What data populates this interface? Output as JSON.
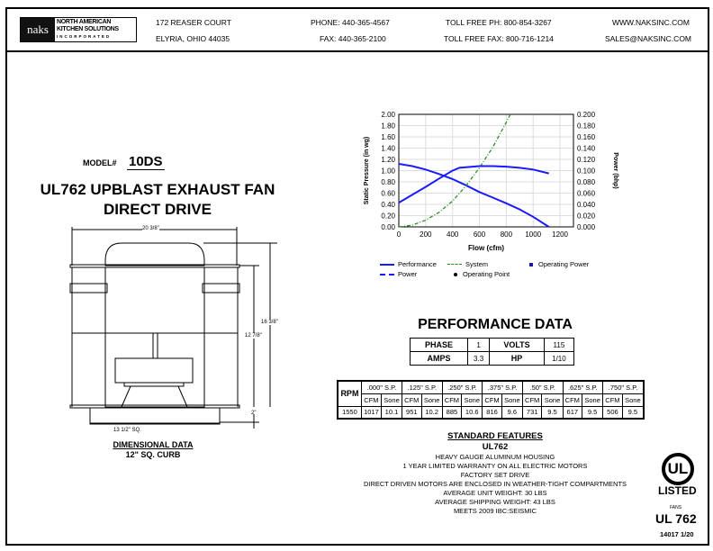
{
  "header": {
    "logo_text": {
      "mark": "naks",
      "line1": "NORTH AMERICAN",
      "line2": "KITCHEN SOLUTIONS",
      "line3": "INCORPORATED"
    },
    "address1": "172 REASER COURT",
    "address2": "ELYRIA, OHIO 44035",
    "phone": "PHONE: 440-365-4567",
    "fax": "FAX: 440-365-2100",
    "tollfree_phone": "TOLL FREE PH: 800-854-3267",
    "tollfree_fax": "TOLL FREE FAX: 800-716-1214",
    "web": "WWW.NAKSINC.COM",
    "email": "SALES@NAKSINC.COM"
  },
  "model": {
    "label": "MODEL#",
    "value": "10DS",
    "title1": "UL762 UPBLAST EXHAUST FAN",
    "title2": "DIRECT DRIVE"
  },
  "drawing": {
    "width": "20 3/8\"",
    "height_total": "16 3/8\"",
    "height_body": "12 7/8\"",
    "curb_height": "2\"",
    "curb_width": "13 1/2\" SQ.",
    "caption": "DIMENSIONAL DATA",
    "subcaption": "12\" SQ. CURB"
  },
  "chart_data": {
    "type": "line",
    "xlabel": "Flow (cfm)",
    "ylabel": "Static Pressure (in wg)",
    "y2label": "Power (bhp)",
    "xlim": [
      0,
      1300
    ],
    "ylim": [
      0,
      2
    ],
    "y2lim": [
      0,
      0.2
    ],
    "grid": true,
    "x_ticks": [
      "0",
      "200",
      "400",
      "600",
      "800",
      "1000",
      "1200"
    ],
    "y_ticks": [
      "0.00",
      "0.20",
      "0.40",
      "0.60",
      "0.80",
      "1.00",
      "1.20",
      "1.40",
      "1.60",
      "1.80",
      "2.00"
    ],
    "y2_ticks": [
      "0.000",
      "0.020",
      "0.040",
      "0.060",
      "0.080",
      "0.100",
      "0.120",
      "0.140",
      "0.160",
      "0.180",
      "0.200"
    ],
    "series": [
      {
        "name": "Performance",
        "axis": "left",
        "color": "#1a1aff",
        "style": "solid",
        "x": [
          0,
          100,
          200,
          300,
          400,
          500,
          600,
          700,
          800,
          900,
          1000,
          1117
        ],
        "y": [
          1.12,
          1.08,
          1.02,
          0.94,
          0.85,
          0.74,
          0.62,
          0.52,
          0.42,
          0.31,
          0.18,
          0
        ]
      },
      {
        "name": "System",
        "axis": "left",
        "color": "#1a8a1a",
        "style": "dashdot",
        "x": [
          0,
          100,
          200,
          300,
          400,
          500,
          600,
          700,
          800,
          830
        ],
        "y": [
          0,
          0.03,
          0.12,
          0.26,
          0.46,
          0.73,
          1.05,
          1.42,
          1.86,
          2.0
        ]
      },
      {
        "name": "Power",
        "axis": "right",
        "color": "#1a1aff",
        "style": "dashed",
        "x": [
          0,
          100,
          200,
          300,
          400,
          450,
          500,
          600,
          700,
          800,
          900,
          1000,
          1117
        ],
        "y": [
          0.043,
          0.057,
          0.071,
          0.086,
          0.1,
          0.105,
          0.106,
          0.108,
          0.108,
          0.107,
          0.105,
          0.102,
          0.095
        ]
      }
    ],
    "legend": [
      "Performance",
      "System",
      "Operating Power",
      "Power",
      "Operating Point"
    ],
    "legend_placement": "bottom"
  },
  "performance": {
    "title": "PERFORMANCE DATA",
    "phase_label": "PHASE",
    "phase": "1",
    "volts_label": "VOLTS",
    "volts": "115",
    "amps_label": "AMPS",
    "amps": "3.3",
    "hp_label": "HP",
    "hp": "1/10",
    "rpm_label": "RPM",
    "rpm": "1550",
    "cfm_label": "CFM",
    "sone_label": "Sone",
    "columns": [
      {
        "sp": ".000\" S.P.",
        "cfm": "1017",
        "sone": "10.1"
      },
      {
        "sp": ".125\" S.P.",
        "cfm": "951",
        "sone": "10.2"
      },
      {
        "sp": ".250\" S.P.",
        "cfm": "885",
        "sone": "10.6"
      },
      {
        "sp": ".375\" S.P.",
        "cfm": "816",
        "sone": "9.6"
      },
      {
        "sp": ".50\" S.P.",
        "cfm": "731",
        "sone": "9.5"
      },
      {
        "sp": ".625\" S.P.",
        "cfm": "617",
        "sone": "9.5"
      },
      {
        "sp": ".750\" S.P.",
        "cfm": "506",
        "sone": "9.5"
      }
    ]
  },
  "features": {
    "title": "STANDARD FEATURES",
    "subtitle": "UL762",
    "items": [
      "HEAVY GAUGE ALUMINUM HOUSING",
      "1 YEAR LIMITED WARRANTY ON ALL ELECTRIC MOTORS",
      "FACTORY SET DRIVE",
      "DIRECT DRIVEN MOTORS ARE ENCLOSED IN WEATHER-TIGHT COMPARTMENTS",
      "AVERAGE UNIT WEIGHT: 30 LBS",
      "AVERAGE SHIPPING WEIGHT: 43 LBS",
      "MEETS 2009 IBC:SEISMIC"
    ]
  },
  "ul": {
    "mark": "UL",
    "listed": "LISTED",
    "fans": "FANS",
    "standard": "UL 762",
    "doc_code": "14017 1/20"
  }
}
